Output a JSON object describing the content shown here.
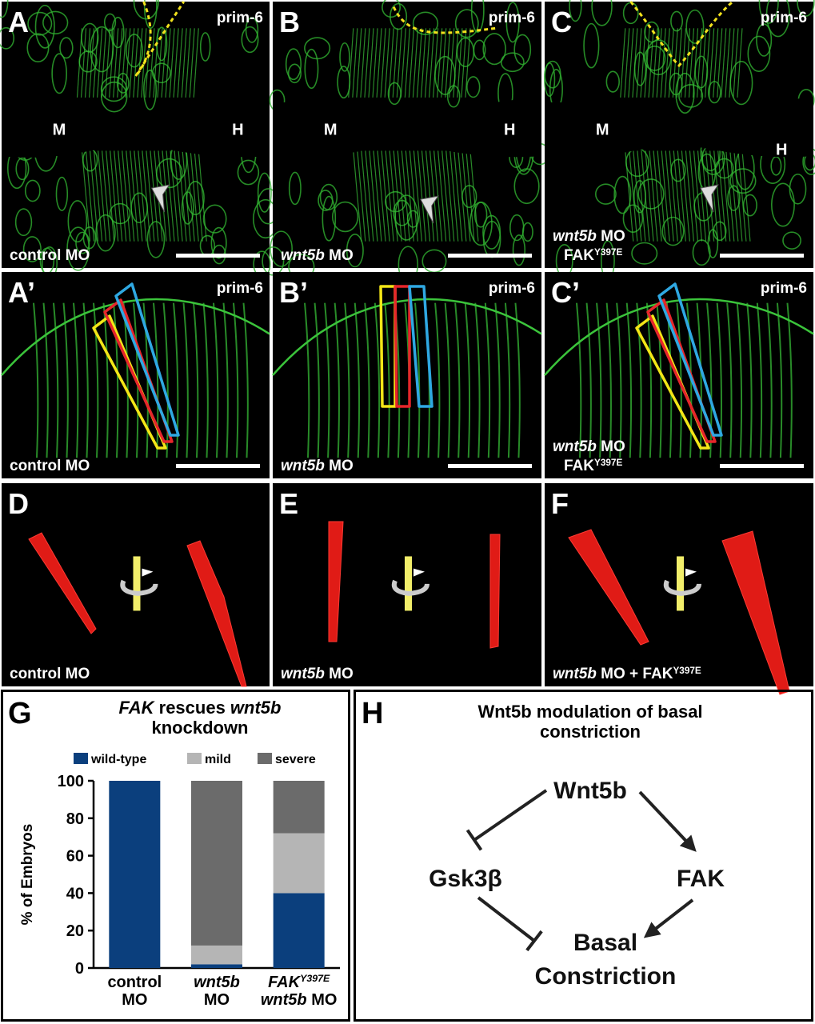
{
  "image_panels": [
    {
      "letter": "A",
      "tag": "prim-6",
      "regions": [
        "M",
        "H"
      ],
      "label": [
        [
          {
            "text": "control MO"
          }
        ]
      ]
    },
    {
      "letter": "B",
      "tag": "prim-6",
      "regions": [
        "M",
        "H"
      ],
      "label": [
        [
          {
            "text": "wnt5b",
            "italic": true
          },
          {
            "text": " MO"
          }
        ]
      ]
    },
    {
      "letter": "C",
      "tag": "prim-6",
      "regions": [
        "M",
        "H"
      ],
      "label": [
        [
          {
            "text": "wnt5b",
            "italic": true
          },
          {
            "text": " MO"
          }
        ],
        [
          {
            "text": "FAK"
          },
          {
            "text": "Y397E",
            "sup": true
          }
        ]
      ]
    },
    {
      "letter": "A’",
      "tag": "prim-6",
      "label": [
        [
          {
            "text": "control MO"
          }
        ]
      ]
    },
    {
      "letter": "B’",
      "tag": "prim-6",
      "label": [
        [
          {
            "text": "wnt5b",
            "italic": true
          },
          {
            "text": " MO"
          }
        ]
      ]
    },
    {
      "letter": "C’",
      "tag": "prim-6",
      "label": [
        [
          {
            "text": "wnt5b",
            "italic": true
          },
          {
            "text": " MO"
          }
        ],
        [
          {
            "text": "FAK"
          },
          {
            "text": "Y397E",
            "sup": true
          }
        ]
      ]
    },
    {
      "letter": "D",
      "label": [
        [
          {
            "text": "control MO"
          }
        ]
      ]
    },
    {
      "letter": "E",
      "label": [
        [
          {
            "text": "wnt5b",
            "italic": true
          },
          {
            "text": " MO"
          }
        ]
      ]
    },
    {
      "letter": "F",
      "label": [
        [
          {
            "text": "wnt5b",
            "italic": true
          },
          {
            "text": " MO + FAK"
          },
          {
            "text": "Y397E",
            "sup": true
          }
        ]
      ]
    }
  ],
  "chart_data": {
    "type": "stacked_bar",
    "letter": "G",
    "title": [
      [
        {
          "text": "FAK",
          "italic": true
        },
        {
          "text": " rescues "
        },
        {
          "text": "wnt5b",
          "italic": true
        }
      ],
      [
        {
          "text": "knockdown"
        }
      ]
    ],
    "y_label": "% of Embryos",
    "categories": [
      [
        [
          {
            "text": "control"
          }
        ],
        [
          {
            "text": "MO"
          }
        ]
      ],
      [
        [
          {
            "text": "wnt5b",
            "italic": true
          }
        ],
        [
          {
            "text": "MO"
          }
        ]
      ],
      [
        [
          {
            "text": "FAK",
            "italic": true
          },
          {
            "text": "Y397E",
            "italic": true,
            "sup": true
          }
        ],
        [
          {
            "text": "wnt5b",
            "italic": true
          },
          {
            "text": " MO"
          }
        ]
      ]
    ],
    "series": [
      {
        "name": "wild-type",
        "color": "#0b3f7d",
        "values": [
          100,
          2,
          40
        ]
      },
      {
        "name": "mild",
        "color": "#b5b5b5",
        "values": [
          0,
          10,
          32
        ]
      },
      {
        "name": "severe",
        "color": "#6b6b6b",
        "values": [
          0,
          88,
          28
        ]
      }
    ],
    "ylim": [
      0,
      100
    ],
    "yticks": [
      0,
      20,
      40,
      60,
      80,
      100
    ],
    "grid": false
  },
  "diagram": {
    "letter": "H",
    "title": [
      "Wnt5b modulation of basal",
      "constriction"
    ],
    "nodes": [
      {
        "lines": [
          [
            {
              "text": "Wnt5b"
            }
          ]
        ]
      },
      {
        "lines": [
          [
            {
              "text": "Gsk3β"
            }
          ]
        ]
      },
      {
        "lines": [
          [
            {
              "text": "FAK"
            }
          ]
        ]
      },
      {
        "lines": [
          [
            {
              "text": "Basal"
            }
          ],
          [
            {
              "text": "Constriction"
            }
          ]
        ]
      }
    ],
    "edges": [
      {
        "from": 0,
        "to": 1,
        "kind": "inhibit"
      },
      {
        "from": 0,
        "to": 2,
        "kind": "activate"
      },
      {
        "from": 1,
        "to": 3,
        "kind": "inhibit"
      },
      {
        "from": 2,
        "to": 3,
        "kind": "activate"
      }
    ]
  }
}
